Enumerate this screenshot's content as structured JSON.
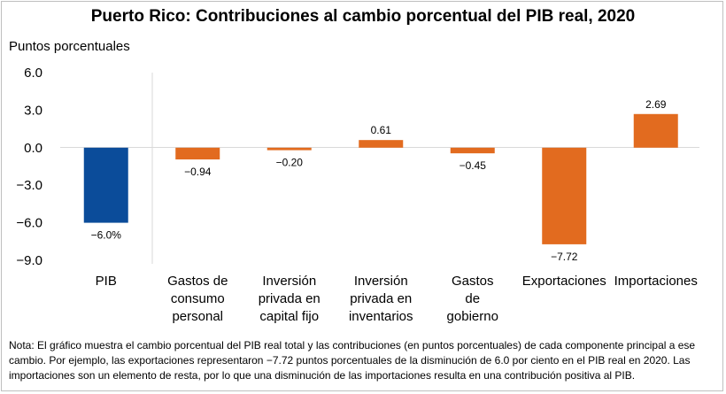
{
  "chart_data": {
    "type": "bar",
    "title": "Puerto Rico: Contribuciones al cambio porcentual del PIB real, 2020",
    "ylabel": "Puntos porcentuales",
    "xlabel": "",
    "ylim": [
      -9.0,
      6.0
    ],
    "yticks": [
      "6.0",
      "3.0",
      "0.0",
      "−3.0",
      "−6.0",
      "−9.0"
    ],
    "ytick_values": [
      6,
      3,
      0,
      -3,
      -6,
      -9
    ],
    "grid": false,
    "categories": [
      [
        "PIB"
      ],
      [
        "Gastos de",
        "consumo",
        "personal"
      ],
      [
        "Inversión",
        "privada en",
        "capital fijo"
      ],
      [
        "Inversión",
        "privada en",
        "inventarios"
      ],
      [
        "Gastos",
        "de",
        "gobierno"
      ],
      [
        "Exportaciones"
      ],
      [
        "Importaciones"
      ]
    ],
    "values": [
      -6.0,
      -0.94,
      -0.2,
      0.61,
      -0.45,
      -7.72,
      2.69
    ],
    "data_labels": [
      "−6.0%",
      "−0.94",
      "−0.20",
      "0.61",
      "−0.45",
      "−7.72",
      "2.69"
    ],
    "colors": [
      "#0b4c9a",
      "#e26b1f",
      "#e26b1f",
      "#e26b1f",
      "#e26b1f",
      "#e26b1f",
      "#e26b1f"
    ]
  },
  "note": "Nota: El gráfico muestra el cambio porcentual del PIB real total y las contribuciones (en puntos porcentuales) de cada componente principal a ese cambio. Por ejemplo, las exportaciones representaron −7.72 puntos porcentuales de la disminución de 6.0 por ciento en el PIB real en 2020. Las importaciones son un elemento de resta, por lo que una disminución de las importaciones resulta en una contribución positiva al PIB."
}
